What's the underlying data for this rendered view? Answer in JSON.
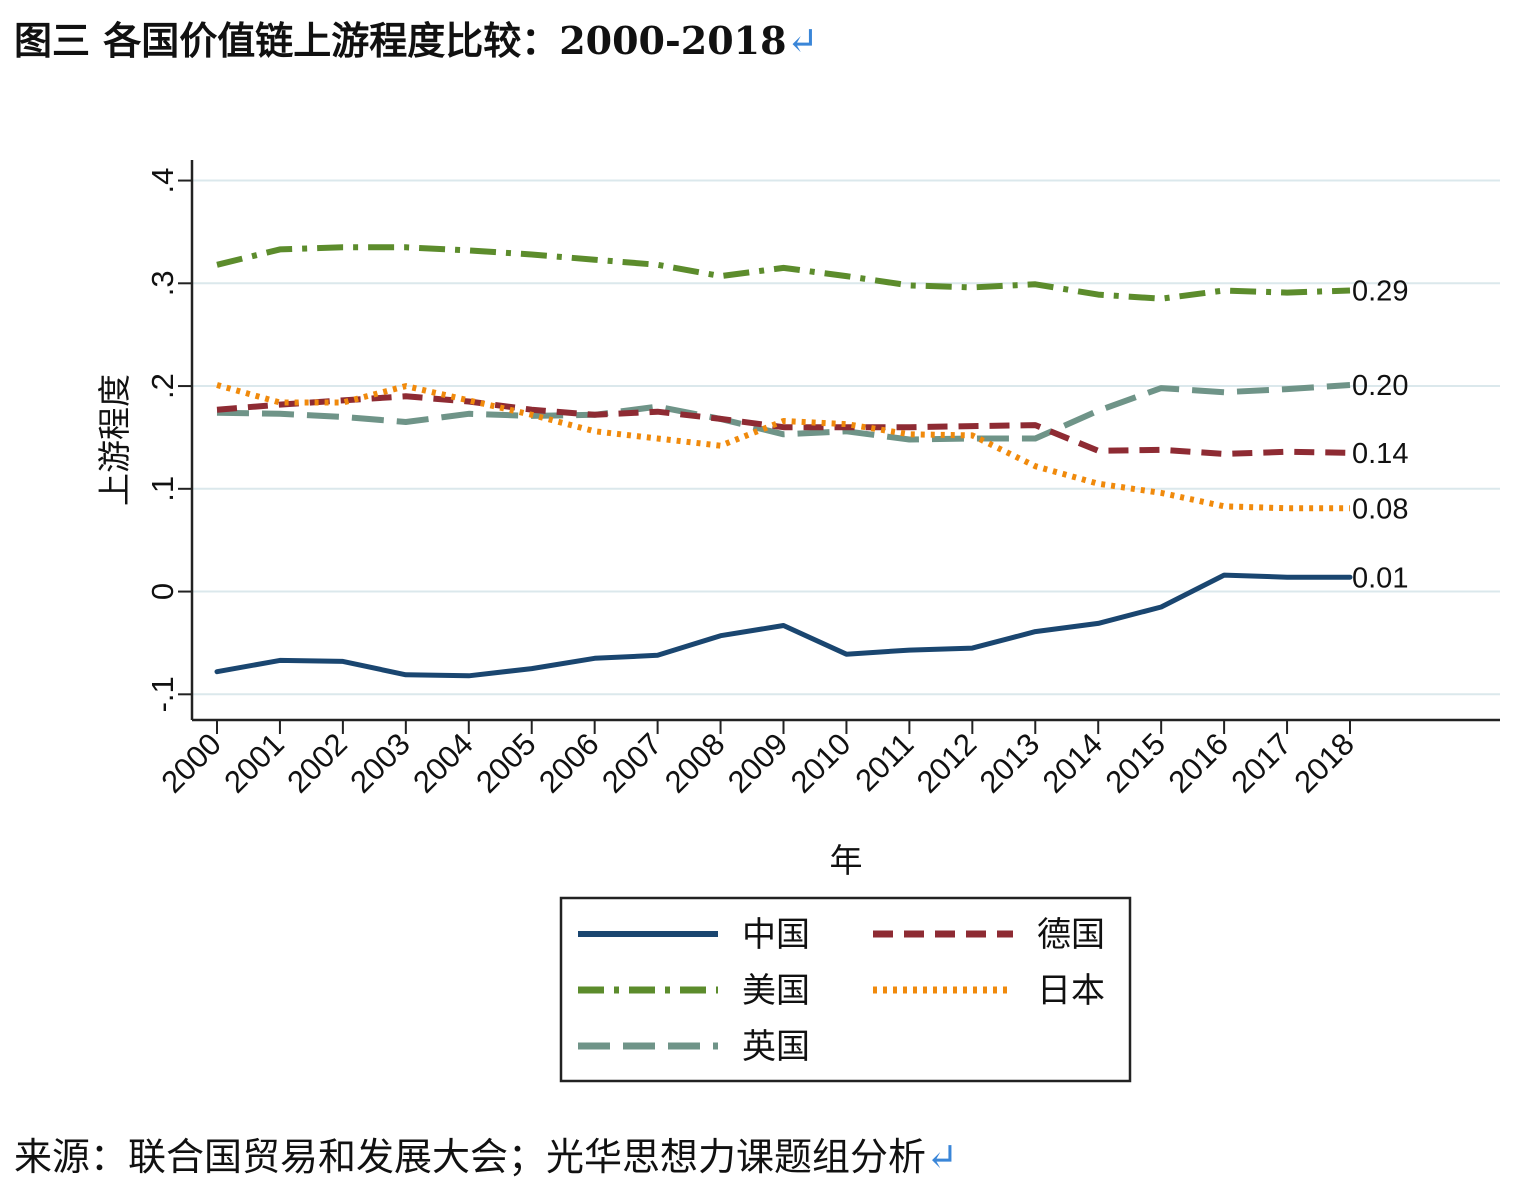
{
  "figure": {
    "title": "图三 各国价值链上游程度比较：2000-2018",
    "source": "来源：联合国贸易和发展大会；光华思想力课题组分析",
    "return_mark": "↵"
  },
  "chart_data": {
    "type": "line",
    "title": "",
    "xlabel": "年",
    "ylabel": "上游程度",
    "x": [
      2000,
      2001,
      2002,
      2003,
      2004,
      2005,
      2006,
      2007,
      2008,
      2009,
      2010,
      2011,
      2012,
      2013,
      2014,
      2015,
      2016,
      2017,
      2018
    ],
    "x_tick_labels": [
      "2000",
      "2001",
      "2002",
      "2003",
      "2004",
      "2005",
      "2006",
      "2007",
      "2008",
      "2009",
      "2010",
      "2011",
      "2012",
      "2013",
      "2014",
      "2015",
      "2016",
      "2017",
      "2018"
    ],
    "ylim": [
      -0.125,
      0.42
    ],
    "y_ticks": [
      -0.1,
      0,
      0.1,
      0.2,
      0.3,
      0.4
    ],
    "y_tick_labels": [
      "-.1",
      "0",
      ".1",
      ".2",
      ".3",
      ".4"
    ],
    "grid": true,
    "legend_position": "bottom",
    "series": [
      {
        "name": "中国",
        "color": "#1a4670",
        "style": "solid",
        "values": [
          -0.078,
          -0.067,
          -0.068,
          -0.081,
          -0.082,
          -0.075,
          -0.065,
          -0.062,
          -0.043,
          -0.033,
          -0.061,
          -0.057,
          -0.055,
          -0.039,
          -0.031,
          -0.015,
          0.016,
          0.014,
          0.014
        ],
        "end_label": "0.01"
      },
      {
        "name": "德国",
        "color": "#8e2b33",
        "style": "dash",
        "values": [
          0.177,
          0.182,
          0.186,
          0.19,
          0.185,
          0.177,
          0.172,
          0.175,
          0.168,
          0.16,
          0.16,
          0.16,
          0.161,
          0.162,
          0.137,
          0.138,
          0.134,
          0.136,
          0.135
        ],
        "end_label": "0.14"
      },
      {
        "name": "美国",
        "color": "#5c8c2c",
        "style": "dashdot",
        "values": [
          0.318,
          0.333,
          0.335,
          0.335,
          0.332,
          0.328,
          0.323,
          0.318,
          0.307,
          0.315,
          0.307,
          0.298,
          0.296,
          0.299,
          0.289,
          0.285,
          0.293,
          0.291,
          0.293
        ],
        "end_label": "0.29"
      },
      {
        "name": "日本",
        "color": "#f08a0c",
        "style": "dot",
        "values": [
          0.201,
          0.184,
          0.184,
          0.2,
          0.186,
          0.172,
          0.156,
          0.149,
          0.142,
          0.166,
          0.163,
          0.153,
          0.152,
          0.122,
          0.105,
          0.096,
          0.083,
          0.081,
          0.081
        ],
        "end_label": "0.08"
      },
      {
        "name": "英国",
        "color": "#6f9488",
        "style": "longdash",
        "values": [
          0.174,
          0.173,
          0.17,
          0.165,
          0.173,
          0.171,
          0.172,
          0.18,
          0.168,
          0.153,
          0.156,
          0.148,
          0.149,
          0.149,
          0.176,
          0.198,
          0.194,
          0.197,
          0.201
        ],
        "end_label": "0.20"
      }
    ]
  }
}
